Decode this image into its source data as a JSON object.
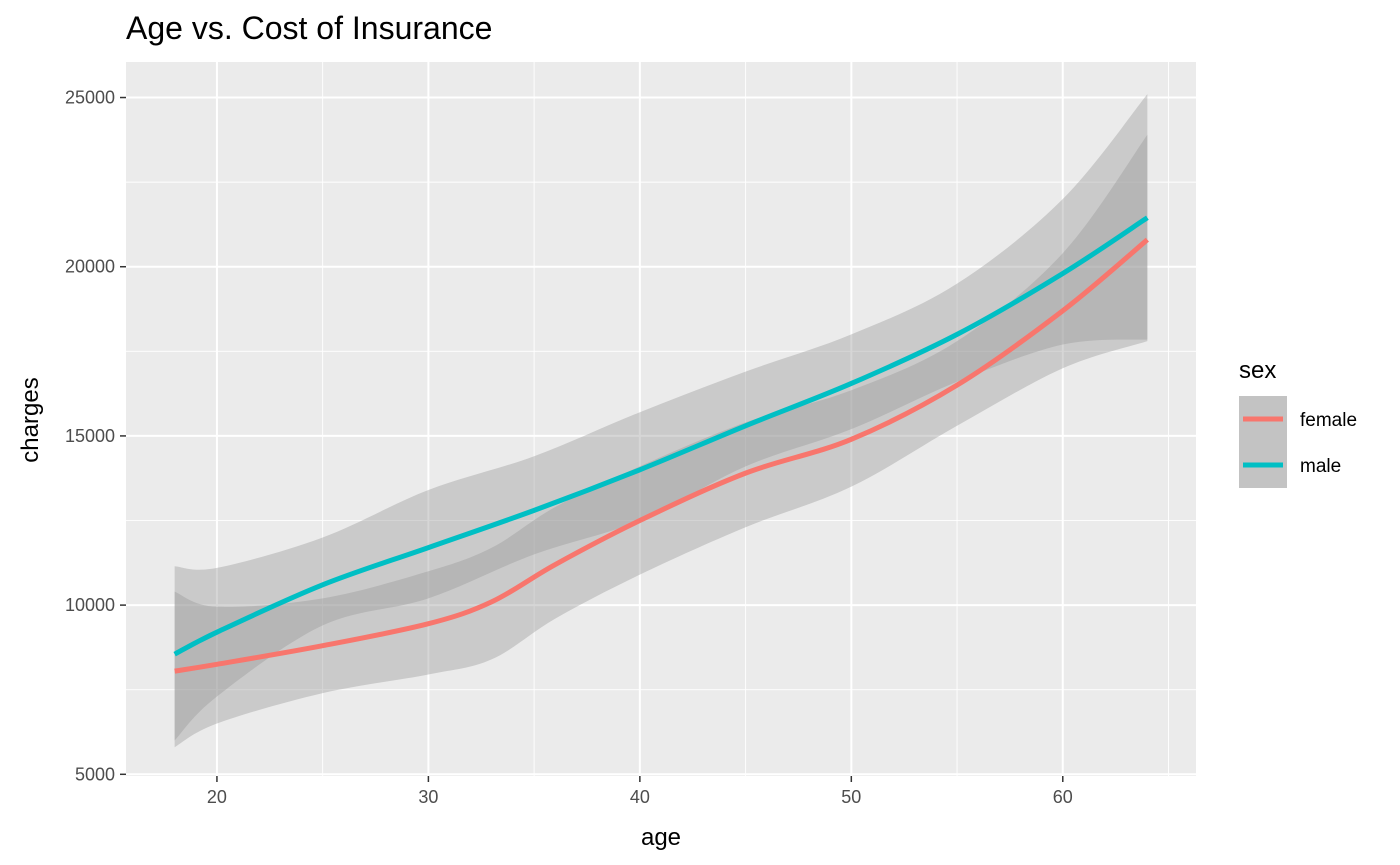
{
  "chart_data": {
    "type": "line",
    "title": "Age vs. Cost of Insurance",
    "xlabel": "age",
    "ylabel": "charges",
    "xlim": [
      15.7,
      66.3
    ],
    "ylim": [
      4950,
      26050
    ],
    "x_ticks": [
      20,
      30,
      40,
      50,
      60
    ],
    "y_ticks": [
      5000,
      10000,
      15000,
      20000,
      25000
    ],
    "x_tick_labels": [
      "20",
      "30",
      "40",
      "50",
      "60"
    ],
    "y_tick_labels": [
      "5000",
      "10000",
      "15000",
      "20000",
      "25000"
    ],
    "grid": true,
    "legend": {
      "title": "sex",
      "position": "right"
    },
    "series": [
      {
        "name": "female",
        "color": "#F8766D",
        "x": [
          18,
          20,
          25,
          30,
          33,
          36,
          40,
          45,
          50,
          55,
          60,
          64
        ],
        "y": [
          8050,
          8250,
          8800,
          9450,
          10100,
          11200,
          12500,
          13900,
          14900,
          16500,
          18700,
          20800
        ],
        "lower": [
          5800,
          6500,
          7400,
          7950,
          8400,
          9600,
          10900,
          12300,
          13500,
          15300,
          17000,
          17800
        ],
        "upper": [
          10400,
          9950,
          10200,
          11000,
          11700,
          12900,
          14100,
          15400,
          16350,
          17800,
          20400,
          23900
        ]
      },
      {
        "name": "male",
        "color": "#00BFC4",
        "x": [
          18,
          20,
          25,
          30,
          35,
          40,
          45,
          50,
          55,
          60,
          64
        ],
        "y": [
          8550,
          9200,
          10600,
          11700,
          12800,
          14000,
          15300,
          16550,
          18000,
          19800,
          21450
        ],
        "lower": [
          6000,
          7300,
          9400,
          10200,
          11500,
          12500,
          14100,
          15200,
          16600,
          17700,
          17850
        ],
        "upper": [
          11150,
          11100,
          12000,
          13400,
          14400,
          15700,
          16900,
          18000,
          19500,
          22000,
          25100
        ]
      }
    ]
  }
}
